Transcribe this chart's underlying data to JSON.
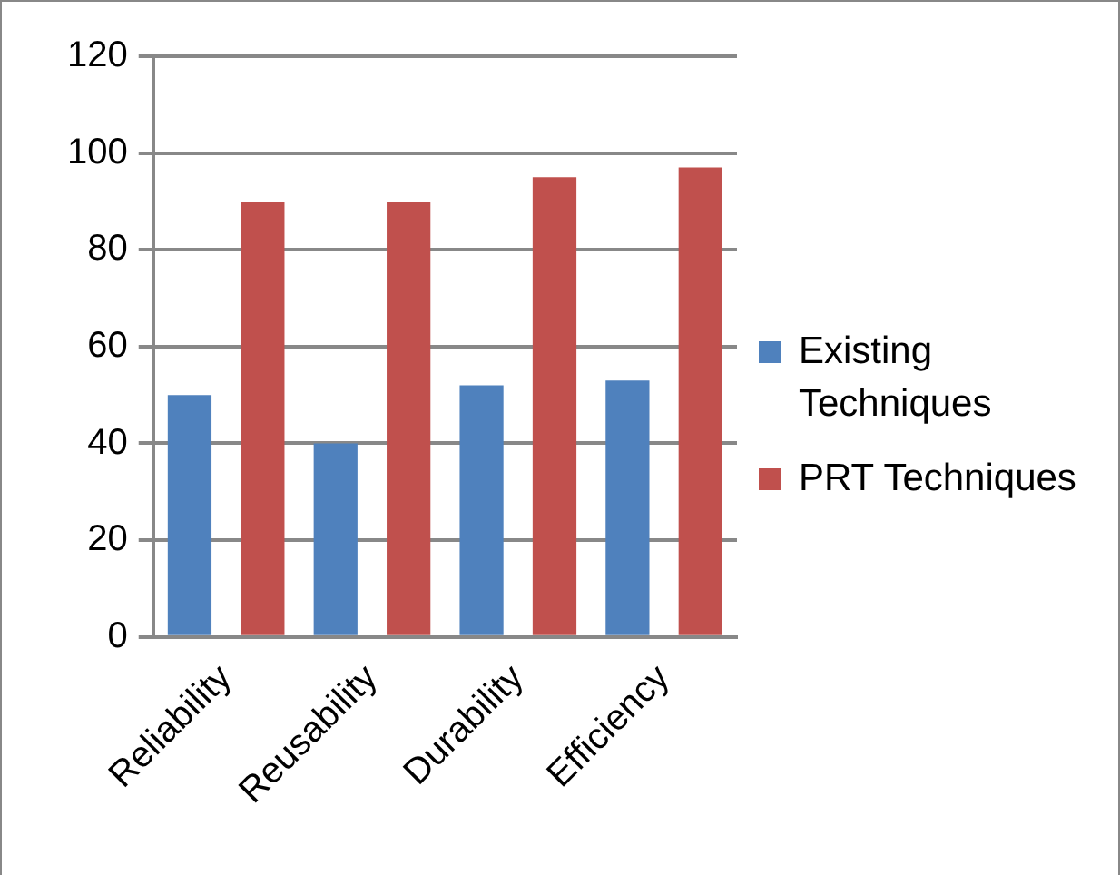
{
  "chart_data": {
    "type": "bar",
    "categories": [
      "Reliability",
      "Reusability",
      "Durability",
      "Efficiency"
    ],
    "series": [
      {
        "name": "Existing Techniques",
        "color": "#4f81bd",
        "values": [
          50,
          40,
          52,
          53
        ]
      },
      {
        "name": "PRT Techniques",
        "color": "#c0504d",
        "values": [
          90,
          90,
          95,
          97
        ]
      }
    ],
    "ylim": [
      0,
      120
    ],
    "yticks": [
      0,
      20,
      40,
      60,
      80,
      100,
      120
    ],
    "grid": "y",
    "legend": "right"
  }
}
